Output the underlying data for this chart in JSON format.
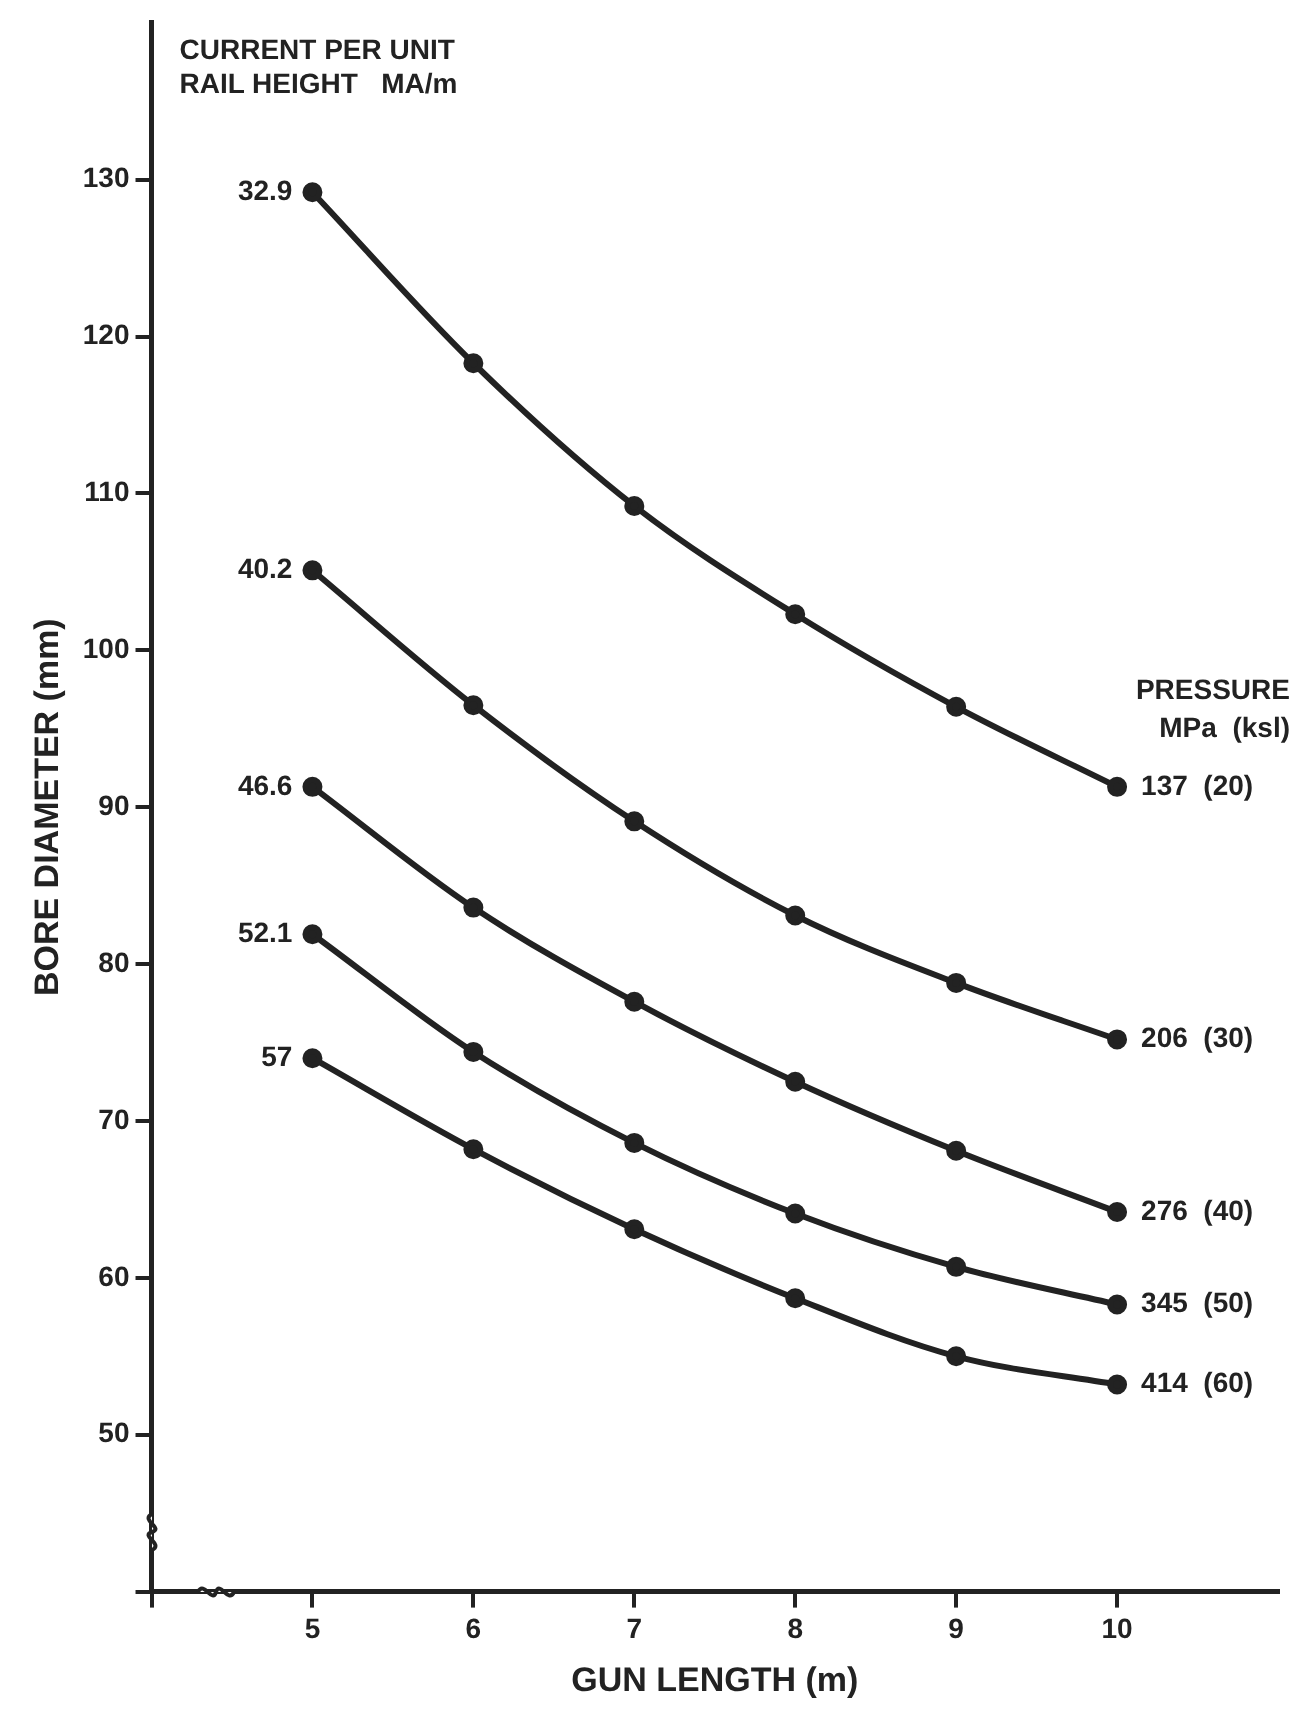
{
  "chart_data": {
    "type": "line",
    "xlabel": "GUN LENGTH (m)",
    "ylabel": "BORE DIAMETER (mm)",
    "x": [
      5,
      6,
      7,
      8,
      9,
      10
    ],
    "xlim": [
      4,
      11
    ],
    "xticks": [
      {
        "value": 4,
        "label": null
      },
      5,
      6,
      7,
      8,
      9,
      10
    ],
    "ylim": [
      40,
      140
    ],
    "yticks": [
      {
        "value": 40,
        "label": null
      },
      50,
      60,
      70,
      80,
      90,
      100,
      110,
      120,
      130
    ],
    "grid": false,
    "legend": false,
    "marker": "circle",
    "line_style": "solid",
    "series": [
      {
        "name": "137  (20)",
        "color": "#222222",
        "values": [
          129.2,
          118.3,
          109.2,
          102.3,
          96.4,
          91.3
        ]
      },
      {
        "name": "206  (30)",
        "color": "#222222",
        "values": [
          105.1,
          96.5,
          89.1,
          83.1,
          78.8,
          75.2
        ]
      },
      {
        "name": "276  (40)",
        "color": "#222222",
        "values": [
          91.3,
          83.6,
          77.6,
          72.5,
          68.1,
          64.2
        ]
      },
      {
        "name": "345  (50)",
        "color": "#222222",
        "values": [
          81.9,
          74.4,
          68.6,
          64.1,
          60.7,
          58.3
        ]
      },
      {
        "name": "414  (60)",
        "color": "#222222",
        "values": [
          74.0,
          68.2,
          63.1,
          58.7,
          55.0,
          53.2
        ]
      }
    ],
    "annotations": [
      "CURRENT PER UNIT\nRAIL HEIGHT   MA/m",
      "PRESSURE\nMPa  (ksl)",
      "32.9",
      "40.2",
      "46.6",
      "52.1",
      "57"
    ]
  }
}
